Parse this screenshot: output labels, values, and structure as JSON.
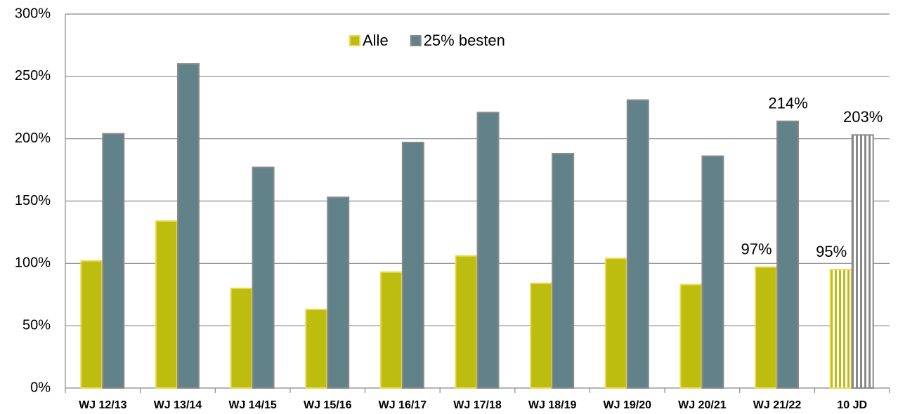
{
  "chart_data": {
    "type": "bar",
    "categories": [
      "WJ 12/13",
      "WJ 13/14",
      "WJ 14/15",
      "WJ 15/16",
      "WJ 16/17",
      "WJ 17/18",
      "WJ 18/19",
      "WJ 19/20",
      "WJ 20/21",
      "WJ 21/22",
      "10 JD"
    ],
    "series": [
      {
        "name": "Alle",
        "color": "#bdbd10",
        "stroke": "#eed858",
        "values": [
          102,
          134,
          80,
          63,
          93,
          106,
          84,
          104,
          83,
          97,
          95
        ],
        "value_labels": [
          null,
          null,
          null,
          null,
          null,
          null,
          null,
          null,
          null,
          "97%",
          "95%"
        ]
      },
      {
        "name": "25% besten",
        "color": "#62828a",
        "stroke": "#8a8a8a",
        "values": [
          204,
          260,
          177,
          153,
          197,
          221,
          188,
          231,
          186,
          214,
          203
        ],
        "value_labels": [
          null,
          null,
          null,
          null,
          null,
          null,
          null,
          null,
          null,
          "214%",
          "203%"
        ]
      }
    ],
    "hatched_category": "10 JD",
    "ylim": [
      0,
      300
    ],
    "yticks": [
      {
        "value": 0,
        "label": "0%"
      },
      {
        "value": 50,
        "label": "50%"
      },
      {
        "value": 100,
        "label": "100%"
      },
      {
        "value": 150,
        "label": "150%"
      },
      {
        "value": 200,
        "label": "200%"
      },
      {
        "value": 250,
        "label": "250%"
      },
      {
        "value": 300,
        "label": "300%"
      }
    ],
    "grid": true,
    "legend": "top"
  }
}
